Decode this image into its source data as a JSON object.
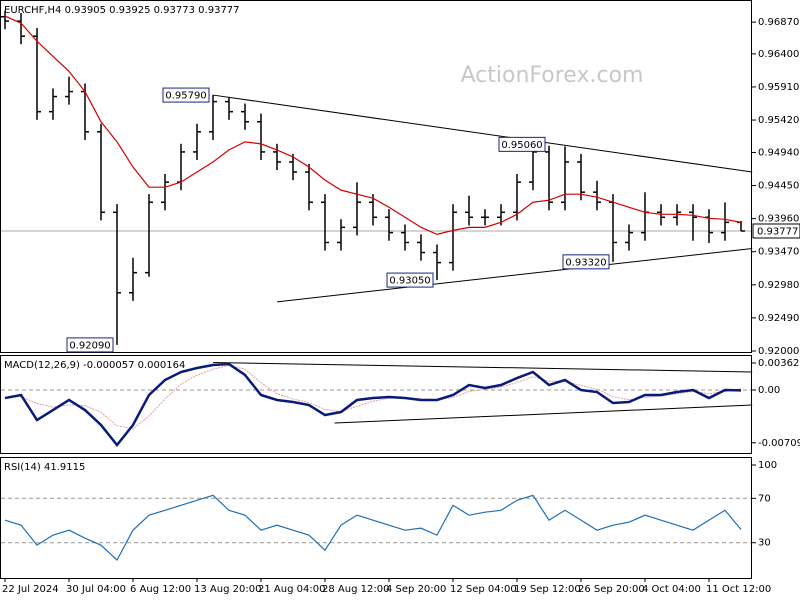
{
  "chart_data": [
    {
      "type": "ohlc",
      "title": "EURCHF,H4  0.93905 0.93925 0.93773 0.93777",
      "watermark": "ActionForex.com",
      "color": "#000000",
      "categories": [
        "22 Jul 2024",
        null,
        null,
        null,
        "30 Jul 04:00",
        null,
        null,
        null,
        "6 Aug 12:00",
        null,
        null,
        null,
        "13 Aug 20:00",
        null,
        null,
        null,
        "21 Aug 04:00",
        null,
        null,
        null,
        "28 Aug 12:00",
        null,
        null,
        null,
        "4 Sep 20:00",
        null,
        null,
        null,
        "12 Sep 04:00",
        null,
        null,
        null,
        "19 Sep 12:00",
        null,
        null,
        null,
        "26 Sep 20:00",
        null,
        null,
        null,
        "4 Oct 04:00",
        null,
        null,
        null,
        "11 Oct 12:00",
        null,
        null
      ],
      "open": [
        0.9695,
        0.96885,
        0.96662,
        0.95544,
        0.95768,
        0.95842,
        0.95246,
        0.94054,
        0.92862,
        0.9316,
        0.94203,
        0.94501,
        0.94948,
        0.95246,
        0.95693,
        0.95544,
        0.95395,
        0.94948,
        0.94799,
        0.9465,
        0.94203,
        0.93607,
        0.93831,
        0.94203,
        0.9398,
        0.93753,
        0.93607,
        0.93458,
        0.93309,
        0.94054,
        0.9398,
        0.9398,
        0.94054,
        0.94501,
        0.94948,
        0.94203,
        0.94799,
        0.94352,
        0.94203,
        0.93607,
        0.93753,
        0.94054,
        0.9398,
        0.94054,
        0.9398,
        0.93753,
        0.93905
      ],
      "high": [
        0.9704,
        0.97005,
        0.96782,
        0.95888,
        0.96062,
        0.95962,
        0.95366,
        0.94174,
        0.9338,
        0.94323,
        0.94621,
        0.95068,
        0.95366,
        0.9579,
        0.95763,
        0.95664,
        0.95515,
        0.95068,
        0.94919,
        0.9477,
        0.94323,
        0.93951,
        0.94498,
        0.94323,
        0.941,
        0.93873,
        0.93727,
        0.93578,
        0.94174,
        0.943,
        0.941,
        0.94174,
        0.94621,
        0.9506,
        0.9504,
        0.9503,
        0.94919,
        0.9452,
        0.94323,
        0.93873,
        0.9435,
        0.94174,
        0.94174,
        0.94174,
        0.941,
        0.942,
        0.93925
      ],
      "low": [
        0.96765,
        0.96542,
        0.95424,
        0.95424,
        0.95648,
        0.95126,
        0.93934,
        0.9209,
        0.92742,
        0.931,
        0.94083,
        0.94381,
        0.94828,
        0.95126,
        0.95424,
        0.95275,
        0.94828,
        0.94679,
        0.9453,
        0.94083,
        0.93487,
        0.93487,
        0.93711,
        0.9386,
        0.93633,
        0.93487,
        0.93338,
        0.9305,
        0.93189,
        0.9386,
        0.9386,
        0.9386,
        0.93934,
        0.94381,
        0.94083,
        0.94083,
        0.94232,
        0.94083,
        0.9332,
        0.93487,
        0.93633,
        0.9386,
        0.9386,
        0.93633,
        0.936,
        0.93633,
        0.93773
      ],
      "close": [
        0.96885,
        0.96662,
        0.95544,
        0.95768,
        0.95842,
        0.95246,
        0.94054,
        0.92862,
        0.9316,
        0.94203,
        0.94501,
        0.94948,
        0.95246,
        0.95693,
        0.95544,
        0.95395,
        0.94948,
        0.94799,
        0.9465,
        0.94203,
        0.93607,
        0.93831,
        0.94203,
        0.9398,
        0.93753,
        0.93607,
        0.93458,
        0.93309,
        0.94054,
        0.9398,
        0.9398,
        0.94054,
        0.94501,
        0.94948,
        0.94203,
        0.94799,
        0.94352,
        0.94203,
        0.93607,
        0.93753,
        0.94054,
        0.9398,
        0.94054,
        0.9398,
        0.93753,
        0.93905,
        0.93777
      ],
      "ma": {
        "color": "#d40000",
        "values": [
          0.9696,
          0.96855,
          0.96587,
          0.96364,
          0.9614,
          0.95842,
          0.95395,
          0.95097,
          0.94724,
          0.94426,
          0.94426,
          0.94501,
          0.9465,
          0.94799,
          0.94978,
          0.95097,
          0.95067,
          0.94978,
          0.94874,
          0.94724,
          0.94531,
          0.94382,
          0.94322,
          0.94263,
          0.94128,
          0.9398,
          0.93831,
          0.93727,
          0.93786,
          0.93831,
          0.93831,
          0.93905,
          0.94024,
          0.94203,
          0.94233,
          0.94322,
          0.94322,
          0.94278,
          0.94203,
          0.94128,
          0.94054,
          0.94024,
          0.94024,
          0.94009,
          0.93965,
          0.9395,
          0.93905
        ]
      },
      "ylim": [
        0.91985,
        0.97183
      ],
      "yticks": [
        {
          "value": 0.9687,
          "label": "0.96870"
        },
        {
          "value": 0.964,
          "label": "0.96400"
        },
        {
          "value": 0.9591,
          "label": "0.95910"
        },
        {
          "value": 0.9542,
          "label": "0.95420"
        },
        {
          "value": 0.9494,
          "label": "0.94940"
        },
        {
          "value": 0.9445,
          "label": "0.94450"
        },
        {
          "value": 0.9396,
          "label": "0.93960"
        },
        {
          "value": 0.9347,
          "label": "0.93470"
        },
        {
          "value": 0.9298,
          "label": "0.92980"
        },
        {
          "value": 0.9249,
          "label": "0.92490"
        },
        {
          "value": 0.92,
          "label": "0.92000"
        }
      ],
      "last_price": {
        "value": 0.93777,
        "label": "0.93777"
      },
      "annotations": [
        {
          "value": 0.9579,
          "label": "0.95790",
          "bar": 13
        },
        {
          "value": 0.9506,
          "label": "0.95060",
          "bar": 34
        },
        {
          "value": 0.9332,
          "label": "0.93320",
          "bar": 38
        },
        {
          "value": 0.9305,
          "label": "0.93050",
          "bar": 27
        },
        {
          "value": 0.9209,
          "label": "0.92090",
          "bar": 7
        }
      ],
      "trendlines": [
        {
          "x": [
            13,
            46.7
          ],
          "y": [
            0.9579,
            0.9465
          ]
        },
        {
          "x": [
            17,
            46.7
          ],
          "y": [
            0.92728,
            0.93518
          ]
        }
      ]
    },
    {
      "type": "macd",
      "title": "MACD(12,26,9) -0.000057 0.000164",
      "macd": {
        "color": "#0a1a7a",
        "values": [
          -0.00108,
          -0.00067,
          -0.00403,
          -0.00269,
          -0.00134,
          -0.00269,
          -0.0047,
          -0.00739,
          -0.0047,
          -0.00067,
          0.00134,
          0.00242,
          0.00296,
          0.00336,
          0.00349,
          0.00202,
          -0.00067,
          -0.00134,
          -0.00161,
          -0.00202,
          -0.00336,
          -0.00296,
          -0.00134,
          -0.00108,
          -0.00094,
          -0.00108,
          -0.00134,
          -0.00134,
          -0.00067,
          0.00067,
          0.00027,
          0.00067,
          0.00161,
          0.00242,
          0.00067,
          0.00134,
          0,
          -0.00027,
          -0.00175,
          -0.00161,
          -0.00067,
          -0.00067,
          -0.00027,
          0,
          -0.00108,
          0,
          -5.7e-05
        ]
      },
      "signal": {
        "color": "#e0a0a0",
        "values": [
          -0.001,
          -0.0009,
          -0.0018,
          -0.0023,
          -0.002,
          -0.0021,
          -0.003,
          -0.0048,
          -0.0052,
          -0.0035,
          -0.0012,
          0.0008,
          0.002,
          0.0028,
          0.0033,
          0.0028,
          0.001,
          -0.0005,
          -0.0012,
          -0.0017,
          -0.0026,
          -0.0029,
          -0.0022,
          -0.0015,
          -0.0011,
          -0.001,
          -0.0012,
          -0.0013,
          -0.001,
          -0.0002,
          0.0001,
          0.0004,
          0.001,
          0.0018,
          0.0012,
          0.0012,
          0.0006,
          0.0001,
          -0.0009,
          -0.0013,
          -0.001,
          -0.0008,
          -0.0005,
          -0.0002,
          -0.0005,
          -0.0002,
          0.000164
        ]
      },
      "ylim": [
        -0.00833,
        0.00457
      ],
      "yticks": [
        0.003628,
        {
          "value": 0,
          "label": "0.00"
        },
        -0.007093
      ],
      "levels": [
        0
      ],
      "trendlines": [
        {
          "x": [
            13,
            46.7
          ],
          "y": [
            0.0037,
            0.00242
          ]
        },
        {
          "x": [
            20.6,
            46.7
          ],
          "y": [
            -0.00444,
            -0.00202
          ]
        }
      ]
    },
    {
      "type": "rsi",
      "title": "RSI(14) 41.9115",
      "color": "#1f6fb5",
      "values": [
        50.3,
        45.8,
        27.8,
        36.8,
        41.3,
        34.1,
        27.8,
        14.4,
        41.3,
        54.8,
        59.2,
        63.7,
        68.2,
        72.7,
        59.2,
        54.8,
        41.3,
        45.8,
        41.3,
        36.8,
        23.3,
        45.8,
        54.8,
        50.3,
        45.8,
        41.3,
        43.1,
        36.8,
        63.7,
        54.8,
        57.5,
        59.2,
        68.2,
        72.7,
        50.3,
        59.2,
        50.3,
        41.3,
        45.8,
        48.5,
        54.8,
        50.3,
        45.8,
        41.3,
        50.3,
        59.2,
        41.9115
      ],
      "ylim": [
        0,
        100
      ],
      "yticks": [
        100,
        70,
        30
      ],
      "levels": [
        70,
        30
      ]
    }
  ]
}
